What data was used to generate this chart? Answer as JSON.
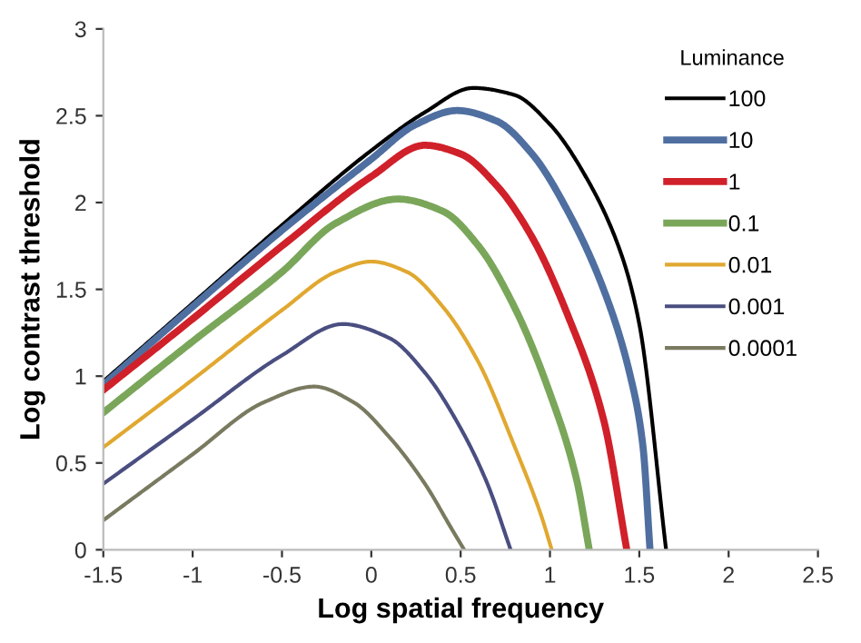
{
  "chart_data": {
    "type": "line",
    "xlabel": "Log spatial frequency",
    "ylabel": "Log contrast threshold",
    "legend_title": "Luminance",
    "legend": "top right",
    "grid": false,
    "marker": "none",
    "line_style": "solid",
    "xlim": [
      -1.5,
      2.5
    ],
    "xticks": [
      -1.5,
      -1,
      -0.5,
      0,
      0.5,
      1,
      1.5,
      2,
      2.5
    ],
    "ylim": [
      0,
      3
    ],
    "yticks": [
      0,
      0.5,
      1,
      1.5,
      2,
      2.5,
      3
    ],
    "series": [
      {
        "name": "100",
        "color": "#000000",
        "x": [
          -1.5,
          -1,
          -0.5,
          0,
          0.3,
          0.57,
          0.8,
          1.0,
          1.2,
          1.4,
          1.5,
          1.65
        ],
        "values": [
          0.97,
          1.42,
          1.87,
          2.3,
          2.52,
          2.66,
          2.62,
          2.45,
          2.15,
          1.7,
          1.3,
          0
        ]
      },
      {
        "name": "10",
        "color": "#4f6fa0",
        "x": [
          -1.5,
          -1,
          -0.5,
          0,
          0.25,
          0.48,
          0.7,
          0.9,
          1.1,
          1.3,
          1.45,
          1.52,
          1.56
        ],
        "values": [
          0.95,
          1.4,
          1.84,
          2.25,
          2.45,
          2.53,
          2.47,
          2.28,
          1.95,
          1.5,
          1.0,
          0.6,
          0
        ]
      },
      {
        "name": "1",
        "color": "#d0202a",
        "x": [
          -1.5,
          -1,
          -0.5,
          0,
          0.3,
          0.5,
          0.7,
          0.9,
          1.1,
          1.3,
          1.43
        ],
        "values": [
          0.92,
          1.33,
          1.75,
          2.15,
          2.33,
          2.28,
          2.1,
          1.8,
          1.35,
          0.75,
          0
        ]
      },
      {
        "name": "0.1",
        "color": "#7aa65a",
        "x": [
          -1.5,
          -1,
          -0.5,
          -0.2,
          0.15,
          0.4,
          0.6,
          0.8,
          1.0,
          1.15,
          1.22
        ],
        "values": [
          0.79,
          1.2,
          1.6,
          1.88,
          2.02,
          1.95,
          1.75,
          1.4,
          0.9,
          0.4,
          0
        ]
      },
      {
        "name": "0.01",
        "color": "#e0a830",
        "x": [
          -1.5,
          -1,
          -0.5,
          -0.2,
          0,
          0.2,
          0.4,
          0.6,
          0.8,
          0.95,
          1.01
        ],
        "values": [
          0.59,
          0.98,
          1.38,
          1.6,
          1.66,
          1.6,
          1.4,
          1.08,
          0.6,
          0.2,
          0
        ]
      },
      {
        "name": "0.001",
        "color": "#4a4e80",
        "x": [
          -1.5,
          -1,
          -0.5,
          -0.16,
          0.1,
          0.3,
          0.5,
          0.65,
          0.78
        ],
        "values": [
          0.38,
          0.75,
          1.12,
          1.3,
          1.22,
          1.02,
          0.7,
          0.38,
          0
        ]
      },
      {
        "name": "0.0001",
        "color": "#7a7a60",
        "x": [
          -1.5,
          -1,
          -0.6,
          -0.32,
          -0.1,
          0.1,
          0.3,
          0.45,
          0.52
        ],
        "values": [
          0.17,
          0.55,
          0.85,
          0.94,
          0.85,
          0.65,
          0.38,
          0.12,
          0
        ]
      }
    ]
  }
}
